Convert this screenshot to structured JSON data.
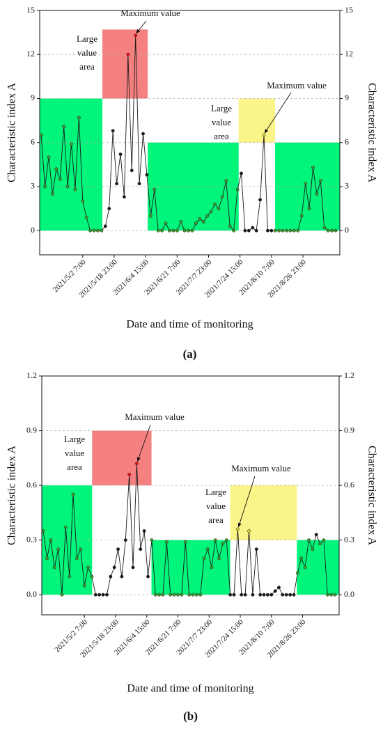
{
  "chart_data": [
    {
      "type": "line",
      "panel_label": "(a)",
      "x_label": "Date and time of monitoring",
      "y_label": "Characteristic index A",
      "xlim": [
        "2021/4/9 12:00",
        "2021/9/15 12:00"
      ],
      "xticks": [
        "2021/5/2 7:00",
        "2021/5/18 23:00",
        "2021/6/4 15:00",
        "2021/6/21 7:00",
        "2021/7/7 23:00",
        "2021/7/24 15:00",
        "2021/8/10 7:00",
        "2021/8/26 23:00"
      ],
      "ylim": [
        -1.65,
        15
      ],
      "yticks": [
        0,
        3,
        6,
        9,
        12,
        15
      ],
      "grid": true,
      "color": "#1a1a1a",
      "x": [
        "2021/4/10 7:00",
        "2021/4/12 7:00",
        "2021/4/14 7:00",
        "2021/4/16 7:00",
        "2021/4/18 7:00",
        "2021/4/20 7:00",
        "2021/4/22 7:00",
        "2021/4/24 7:00",
        "2021/4/26 7:00",
        "2021/4/28 7:00",
        "2021/4/30 7:00",
        "2021/5/2 7:00",
        "2021/5/4 7:00",
        "2021/5/6 7:00",
        "2021/5/8 7:00",
        "2021/5/10 7:00",
        "2021/5/12 7:00",
        "2021/5/14 7:00",
        "2021/5/16 7:00",
        "2021/5/18 7:00",
        "2021/5/20 7:00",
        "2021/5/22 7:00",
        "2021/5/24 7:00",
        "2021/5/26 7:00",
        "2021/5/28 7:00",
        "2021/5/30 7:00",
        "2021/6/1 7:00",
        "2021/6/3 7:00",
        "2021/6/5 7:00",
        "2021/6/7 7:00",
        "2021/6/9 7:00",
        "2021/6/11 7:00",
        "2021/6/13 7:00",
        "2021/6/15 7:00",
        "2021/6/17 7:00",
        "2021/6/19 7:00",
        "2021/6/21 7:00",
        "2021/6/23 7:00",
        "2021/6/25 7:00",
        "2021/6/27 7:00",
        "2021/6/29 7:00",
        "2021/7/1 7:00",
        "2021/7/3 7:00",
        "2021/7/5 7:00",
        "2021/7/7 7:00",
        "2021/7/9 7:00",
        "2021/7/11 7:00",
        "2021/7/13 7:00",
        "2021/7/15 7:00",
        "2021/7/17 7:00",
        "2021/7/19 7:00",
        "2021/7/21 7:00",
        "2021/7/23 7:00",
        "2021/7/25 7:00",
        "2021/7/27 7:00",
        "2021/7/29 7:00",
        "2021/7/31 7:00",
        "2021/8/2 7:00",
        "2021/8/4 7:00",
        "2021/8/6 7:00",
        "2021/8/8 7:00",
        "2021/8/10 7:00",
        "2021/8/12 7:00",
        "2021/8/14 7:00",
        "2021/8/16 7:00",
        "2021/8/18 7:00",
        "2021/8/20 7:00",
        "2021/8/22 7:00",
        "2021/8/24 7:00",
        "2021/8/26 7:00",
        "2021/8/28 7:00",
        "2021/8/30 7:00",
        "2021/9/1 7:00",
        "2021/9/3 7:00",
        "2021/9/5 7:00",
        "2021/9/7 7:00",
        "2021/9/9 7:00",
        "2021/9/11 7:00",
        "2021/9/13 7:00"
      ],
      "values": [
        6.5,
        3.0,
        5.0,
        2.5,
        4.2,
        3.5,
        7.1,
        3.0,
        5.9,
        2.8,
        7.7,
        2.0,
        0.9,
        0,
        0,
        0,
        0,
        0.3,
        1.5,
        6.8,
        3.2,
        5.2,
        2.3,
        12.0,
        4.1,
        13.3,
        3.2,
        6.6,
        3.8,
        1.0,
        2.8,
        0,
        0,
        0.5,
        0,
        0,
        0,
        0.6,
        0,
        0,
        0,
        0.5,
        0.8,
        0.6,
        1.0,
        1.3,
        1.8,
        1.5,
        2.3,
        3.4,
        0.3,
        0,
        2.8,
        3.9,
        0,
        0,
        0.2,
        0,
        2.1,
        6.5,
        0,
        0,
        0,
        0,
        0,
        0,
        0,
        0,
        0,
        1.0,
        3.2,
        1.5,
        4.3,
        2.5,
        3.4,
        0.2,
        0,
        0,
        0
      ],
      "regions": [
        {
          "x": [
            "2021/4/9 12:00",
            "2021/5/12 17:00"
          ],
          "y": [
            0,
            9
          ],
          "color": "#00f57a",
          "point_color": "#3f9a2c"
        },
        {
          "x": [
            "2021/5/12 17:00",
            "2021/6/5 17:00"
          ],
          "y": [
            9,
            13.7
          ],
          "color": "#f58080",
          "point_color": "#e8101e"
        },
        {
          "x": [
            "2021/6/5 17:00",
            "2021/7/23 22:00"
          ],
          "y": [
            0,
            6
          ],
          "color": "#00f57a",
          "point_color": "#3f9a2c"
        },
        {
          "x": [
            "2021/7/23 22:00",
            "2021/8/12 5:00"
          ],
          "y": [
            6,
            9
          ],
          "color": "#fbf589",
          "point_color": "#d8d030"
        },
        {
          "x": [
            "2021/8/12 5:00",
            "2021/9/15 12:00"
          ],
          "y": [
            0,
            6
          ],
          "color": "#00f57a",
          "point_color": "#3f9a2c"
        }
      ],
      "annotations": [
        {
          "lines": [
            "Large",
            "value",
            "area"
          ]
        },
        {
          "lines": [
            "Maximum value"
          ]
        },
        {
          "lines": [
            "Large",
            "value",
            "area"
          ]
        },
        {
          "lines": [
            "Maximum value"
          ]
        }
      ]
    },
    {
      "type": "line",
      "panel_label": "(b)",
      "x_label": "Date and time of monitoring",
      "y_label": "Characteristic index A",
      "xlim": [
        "2021/4/9 12:00",
        "2021/9/15 12:00"
      ],
      "xticks": [
        "2021/5/2 7:00",
        "2021/5/18 23:00",
        "2021/6/4 15:00",
        "2021/6/21 7:00",
        "2021/7/7 23:00",
        "2021/7/24 15:00",
        "2021/8/10 7:00",
        "2021/8/26 23:00"
      ],
      "ylim": [
        -0.11,
        1.2
      ],
      "yticks": [
        {
          "value": 0,
          "label": "0.0"
        },
        0.3,
        0.6,
        0.9,
        1.2
      ],
      "grid": true,
      "color": "#1a1a1a",
      "x": [
        "2021/4/10 7:00",
        "2021/4/12 7:00",
        "2021/4/14 7:00",
        "2021/4/16 7:00",
        "2021/4/18 7:00",
        "2021/4/20 7:00",
        "2021/4/22 7:00",
        "2021/4/24 7:00",
        "2021/4/26 7:00",
        "2021/4/28 7:00",
        "2021/4/30 7:00",
        "2021/5/2 7:00",
        "2021/5/4 7:00",
        "2021/5/6 7:00",
        "2021/5/8 7:00",
        "2021/5/10 7:00",
        "2021/5/12 7:00",
        "2021/5/14 7:00",
        "2021/5/16 7:00",
        "2021/5/18 7:00",
        "2021/5/20 7:00",
        "2021/5/22 7:00",
        "2021/5/24 7:00",
        "2021/5/26 7:00",
        "2021/5/28 7:00",
        "2021/5/30 7:00",
        "2021/6/1 7:00",
        "2021/6/3 7:00",
        "2021/6/5 7:00",
        "2021/6/7 7:00",
        "2021/6/9 7:00",
        "2021/6/11 7:00",
        "2021/6/13 7:00",
        "2021/6/15 7:00",
        "2021/6/17 7:00",
        "2021/6/19 7:00",
        "2021/6/21 7:00",
        "2021/6/23 7:00",
        "2021/6/25 7:00",
        "2021/6/27 7:00",
        "2021/6/29 7:00",
        "2021/7/1 7:00",
        "2021/7/3 7:00",
        "2021/7/5 7:00",
        "2021/7/7 7:00",
        "2021/7/9 7:00",
        "2021/7/11 7:00",
        "2021/7/13 7:00",
        "2021/7/15 7:00",
        "2021/7/17 7:00",
        "2021/7/19 7:00",
        "2021/7/21 7:00",
        "2021/7/23 7:00",
        "2021/7/25 7:00",
        "2021/7/27 7:00",
        "2021/7/29 7:00",
        "2021/7/31 7:00",
        "2021/8/2 7:00",
        "2021/8/4 7:00",
        "2021/8/6 7:00",
        "2021/8/8 7:00",
        "2021/8/10 7:00",
        "2021/8/12 7:00",
        "2021/8/14 7:00",
        "2021/8/16 7:00",
        "2021/8/18 7:00",
        "2021/8/20 7:00",
        "2021/8/22 7:00",
        "2021/8/24 7:00",
        "2021/8/26 7:00",
        "2021/8/28 7:00",
        "2021/8/30 7:00",
        "2021/9/1 7:00",
        "2021/9/3 7:00",
        "2021/9/5 7:00",
        "2021/9/7 7:00",
        "2021/9/9 7:00",
        "2021/9/11 7:00",
        "2021/9/13 7:00"
      ],
      "values": [
        0.35,
        0.2,
        0.3,
        0.15,
        0.25,
        0,
        0.37,
        0.1,
        0.55,
        0.2,
        0.25,
        0.05,
        0.15,
        0.1,
        0,
        0,
        0,
        0,
        0.1,
        0.15,
        0.25,
        0.1,
        0.3,
        0.66,
        0.15,
        0.72,
        0.25,
        0.35,
        0.1,
        0.3,
        0,
        0,
        0,
        0.29,
        0,
        0,
        0,
        0,
        0.29,
        0,
        0,
        0,
        0,
        0.2,
        0.25,
        0.15,
        0.3,
        0.2,
        0.28,
        0.3,
        0,
        0,
        0.36,
        0,
        0,
        0.35,
        0,
        0.25,
        0,
        0,
        0,
        0,
        0.02,
        0.04,
        0,
        0,
        0,
        0,
        0.12,
        0.2,
        0.15,
        0.3,
        0.25,
        0.33,
        0.28,
        0.3,
        0,
        0,
        0
      ],
      "regions": [
        {
          "x": [
            "2021/4/9 12:00",
            "2021/5/6 10:00"
          ],
          "y": [
            0,
            0.6
          ],
          "color": "#00f57a",
          "point_color": "#3f9a2c"
        },
        {
          "x": [
            "2021/5/6 10:00",
            "2021/6/7 4:00"
          ],
          "y": [
            0.6,
            0.9
          ],
          "color": "#f58080",
          "point_color": "#e8101e"
        },
        {
          "x": [
            "2021/6/7 4:00",
            "2021/7/19 6:00"
          ],
          "y": [
            0,
            0.3
          ],
          "color": "#00f57a",
          "point_color": "#3f9a2c"
        },
        {
          "x": [
            "2021/7/19 6:00",
            "2021/8/23 22:00"
          ],
          "y": [
            0.3,
            0.6
          ],
          "color": "#fbf589",
          "point_color": "#d8d030"
        },
        {
          "x": [
            "2021/8/23 22:00",
            "2021/9/15 12:00"
          ],
          "y": [
            0,
            0.3
          ],
          "color": "#00f57a",
          "point_color": "#3f9a2c"
        }
      ],
      "annotations": [
        {
          "lines": [
            "Large",
            "value",
            "area"
          ]
        },
        {
          "lines": [
            "Maximum value"
          ]
        },
        {
          "lines": [
            "Large",
            "value",
            "area"
          ]
        },
        {
          "lines": [
            "Maximum value"
          ]
        }
      ]
    }
  ]
}
